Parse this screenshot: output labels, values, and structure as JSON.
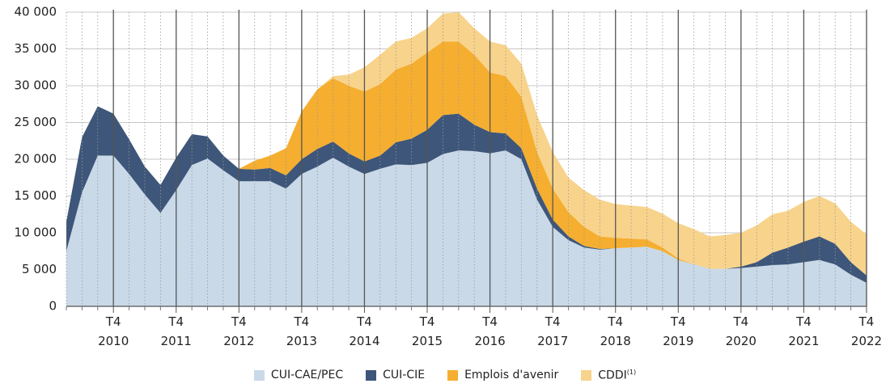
{
  "chart_data": {
    "type": "stacked-area",
    "categories": [
      null,
      null,
      null,
      "T4\n2010",
      null,
      null,
      null,
      "T4\n2011",
      null,
      null,
      null,
      "T4\n2012",
      null,
      null,
      null,
      "T4\n2013",
      null,
      null,
      null,
      "T4\n2014",
      null,
      null,
      null,
      "T4\n2015",
      null,
      null,
      null,
      "T4\n2016",
      null,
      null,
      null,
      "T4\n2017",
      null,
      null,
      null,
      "T4\n2018",
      null,
      null,
      null,
      "T4\n2019",
      null,
      null,
      null,
      "T4\n2020",
      null,
      null,
      null,
      "T4\n2021",
      null,
      null,
      null,
      "T4\n2022"
    ],
    "series": [
      {
        "name": "CUI-CAE/PEC",
        "color": "#c9d9e8",
        "values": [
          7500,
          15500,
          20500,
          20500,
          18000,
          15200,
          12700,
          15800,
          19200,
          20100,
          18500,
          17000,
          17000,
          17000,
          16000,
          18000,
          19000,
          20200,
          19000,
          18000,
          18700,
          19300,
          19200,
          19500,
          20700,
          21200,
          21100,
          20800,
          21200,
          20000,
          14500,
          10800,
          9000,
          8000,
          7700,
          7900,
          8000,
          8100,
          7500,
          6300,
          5700,
          5100,
          5100,
          5200,
          5400,
          5600,
          5700,
          6000,
          6300,
          5700,
          4300,
          3200
        ]
      },
      {
        "name": "CUI-CIE",
        "color": "#3e5679",
        "values": [
          4000,
          7500,
          6700,
          5700,
          4700,
          3800,
          3800,
          4400,
          4200,
          3000,
          2000,
          1700,
          1600,
          1800,
          1800,
          2000,
          2400,
          2200,
          1800,
          1700,
          1800,
          3000,
          3600,
          4500,
          5300,
          5000,
          3600,
          2900,
          2300,
          1500,
          1500,
          1000,
          500,
          200,
          100,
          0,
          0,
          0,
          0,
          0,
          0,
          0,
          0,
          200,
          600,
          1700,
          2300,
          2800,
          3200,
          2800,
          1700,
          1000
        ]
      },
      {
        "name": "Emplois d'avenir",
        "color": "#f5ae2f",
        "values": [
          0,
          0,
          0,
          0,
          0,
          0,
          0,
          0,
          0,
          0,
          0,
          0,
          1200,
          1700,
          3700,
          6500,
          8100,
          8600,
          9200,
          9500,
          9700,
          9900,
          10200,
          10500,
          10000,
          9800,
          9500,
          8100,
          7800,
          7000,
          5000,
          4200,
          3300,
          2600,
          1700,
          1400,
          1200,
          1000,
          500,
          200,
          0,
          0,
          0,
          0,
          0,
          0,
          0,
          0,
          0,
          0,
          0,
          0
        ]
      },
      {
        "name": "CDDI",
        "note": "(1)",
        "color": "#f8d38b",
        "values": [
          0,
          0,
          0,
          0,
          0,
          0,
          0,
          0,
          0,
          0,
          0,
          0,
          0,
          0,
          0,
          0,
          0,
          300,
          1500,
          3300,
          4000,
          3800,
          3500,
          3300,
          3800,
          4000,
          3600,
          4200,
          4200,
          4500,
          5000,
          5000,
          4700,
          5000,
          5000,
          4600,
          4500,
          4400,
          4600,
          4800,
          4800,
          4400,
          4600,
          4600,
          5000,
          5200,
          5000,
          5400,
          5500,
          5500,
          5500,
          5600
        ]
      }
    ],
    "ylim": [
      0,
      40000
    ],
    "yticks": [
      0,
      {
        "value": 5000,
        "label": "5 000"
      },
      {
        "value": 10000,
        "label": "10 000"
      },
      {
        "value": 15000,
        "label": "15 000"
      },
      {
        "value": 20000,
        "label": "20 000"
      },
      {
        "value": 25000,
        "label": "25 000"
      },
      {
        "value": 30000,
        "label": "30 000"
      },
      {
        "value": 35000,
        "label": "35 000"
      },
      {
        "value": 40000,
        "label": "40 000"
      }
    ],
    "grid": true
  }
}
